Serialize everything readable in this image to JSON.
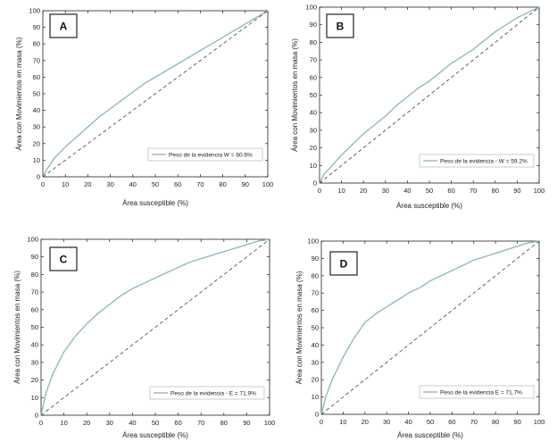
{
  "colors": {
    "curve": "#8fbfa8",
    "diagonal": "#555555",
    "axis": "#222222",
    "box_border": "#222222"
  },
  "chart_data": [
    {
      "type": "line",
      "panel": "A",
      "xlabel": "Área susceptible (%)",
      "ylabel": "Área con Movimientos en masa (%)",
      "xlim": [
        0,
        100
      ],
      "ylim": [
        0,
        100
      ],
      "xticks": [
        "0",
        "10",
        "20",
        "30",
        "40",
        "50",
        "60",
        "70",
        "80",
        "90",
        "100"
      ],
      "yticks": [
        "0",
        "10",
        "20",
        "30",
        "40",
        "50",
        "60",
        "70",
        "80",
        "90",
        "100"
      ],
      "grid": false,
      "legend_position": "bottom-right",
      "series": [
        {
          "name": "Peso de la evidencia W = 60.6%",
          "x": [
            0,
            2,
            5,
            10,
            15,
            20,
            25,
            30,
            35,
            40,
            45,
            50,
            55,
            60,
            65,
            70,
            75,
            80,
            85,
            90,
            95,
            100
          ],
          "y": [
            0,
            5,
            11,
            18,
            24,
            30,
            36,
            41,
            46,
            51,
            56,
            60,
            64,
            68,
            72,
            76,
            80,
            84,
            88,
            92,
            96,
            100
          ]
        },
        {
          "name": "",
          "style": "dashed",
          "x": [
            0,
            100
          ],
          "y": [
            0,
            100
          ]
        }
      ]
    },
    {
      "type": "line",
      "panel": "B",
      "xlabel": "Área susceptible (%)",
      "ylabel": "Área con Movimientos en masa (%)",
      "xlim": [
        0,
        100
      ],
      "ylim": [
        0,
        100
      ],
      "xticks": [
        "0",
        "10",
        "20",
        "30",
        "40",
        "50",
        "60",
        "70",
        "80",
        "90",
        "100"
      ],
      "yticks": [
        "0",
        "10",
        "20",
        "30",
        "40",
        "50",
        "60",
        "70",
        "80",
        "90",
        "100"
      ],
      "grid": false,
      "legend_position": "bottom-right",
      "series": [
        {
          "name": "Peso de la evidencia - W = 59.2%",
          "x": [
            0,
            2,
            5,
            10,
            15,
            20,
            25,
            30,
            35,
            40,
            45,
            50,
            55,
            60,
            65,
            70,
            75,
            80,
            85,
            90,
            95,
            100
          ],
          "y": [
            0,
            5,
            9,
            16,
            22,
            28,
            33,
            38,
            44,
            49,
            54,
            58,
            63,
            68,
            72,
            76,
            81,
            86,
            90,
            94,
            97,
            100
          ]
        },
        {
          "name": "",
          "style": "dashed",
          "x": [
            0,
            100
          ],
          "y": [
            0,
            100
          ]
        }
      ]
    },
    {
      "type": "line",
      "panel": "C",
      "xlabel": "Área susceptible (%)",
      "ylabel": "Área con Movimientos en masa (%)",
      "xlim": [
        0,
        100
      ],
      "ylim": [
        0,
        100
      ],
      "xticks": [
        "0",
        "10",
        "20",
        "30",
        "40",
        "50",
        "60",
        "70",
        "80",
        "90",
        "100"
      ],
      "yticks": [
        "0",
        "10",
        "20",
        "30",
        "40",
        "50",
        "60",
        "70",
        "80",
        "90",
        "100"
      ],
      "grid": false,
      "legend_position": "bottom-right",
      "series": [
        {
          "name": "Peso de la evidencia - E = 71.9%",
          "x": [
            0,
            2,
            5,
            10,
            15,
            20,
            25,
            30,
            35,
            40,
            45,
            50,
            55,
            60,
            65,
            70,
            75,
            80,
            85,
            90,
            95,
            100
          ],
          "y": [
            0,
            12,
            23,
            36,
            45,
            52,
            58,
            63,
            68,
            72,
            75,
            78,
            81,
            84,
            87,
            89,
            91,
            93,
            95,
            97,
            99,
            100
          ]
        },
        {
          "name": "",
          "style": "dashed",
          "x": [
            0,
            100
          ],
          "y": [
            0,
            100
          ]
        }
      ]
    },
    {
      "type": "line",
      "panel": "D",
      "xlabel": "Área susceptible (%)",
      "ylabel": "Área con Movimientos en masa (%)",
      "xlim": [
        0,
        100
      ],
      "ylim": [
        0,
        100
      ],
      "xticks": [
        "0",
        "10",
        "20",
        "30",
        "40",
        "50",
        "60",
        "70",
        "80",
        "90",
        "100"
      ],
      "yticks": [
        "0",
        "10",
        "20",
        "30",
        "40",
        "50",
        "60",
        "70",
        "80",
        "90",
        "100"
      ],
      "grid": false,
      "legend_position": "bottom-right",
      "series": [
        {
          "name": "Peso de la evidencia E = 71.7%",
          "x": [
            0,
            2,
            5,
            10,
            15,
            20,
            25,
            30,
            35,
            40,
            45,
            50,
            55,
            60,
            65,
            70,
            75,
            80,
            85,
            90,
            95,
            100
          ],
          "y": [
            0,
            10,
            20,
            33,
            44,
            53,
            58,
            62,
            66,
            70,
            73,
            77,
            80,
            83,
            86,
            89,
            91,
            93,
            95,
            97,
            99,
            100
          ]
        },
        {
          "name": "",
          "style": "dashed",
          "x": [
            0,
            100
          ],
          "y": [
            0,
            100
          ]
        }
      ]
    }
  ]
}
